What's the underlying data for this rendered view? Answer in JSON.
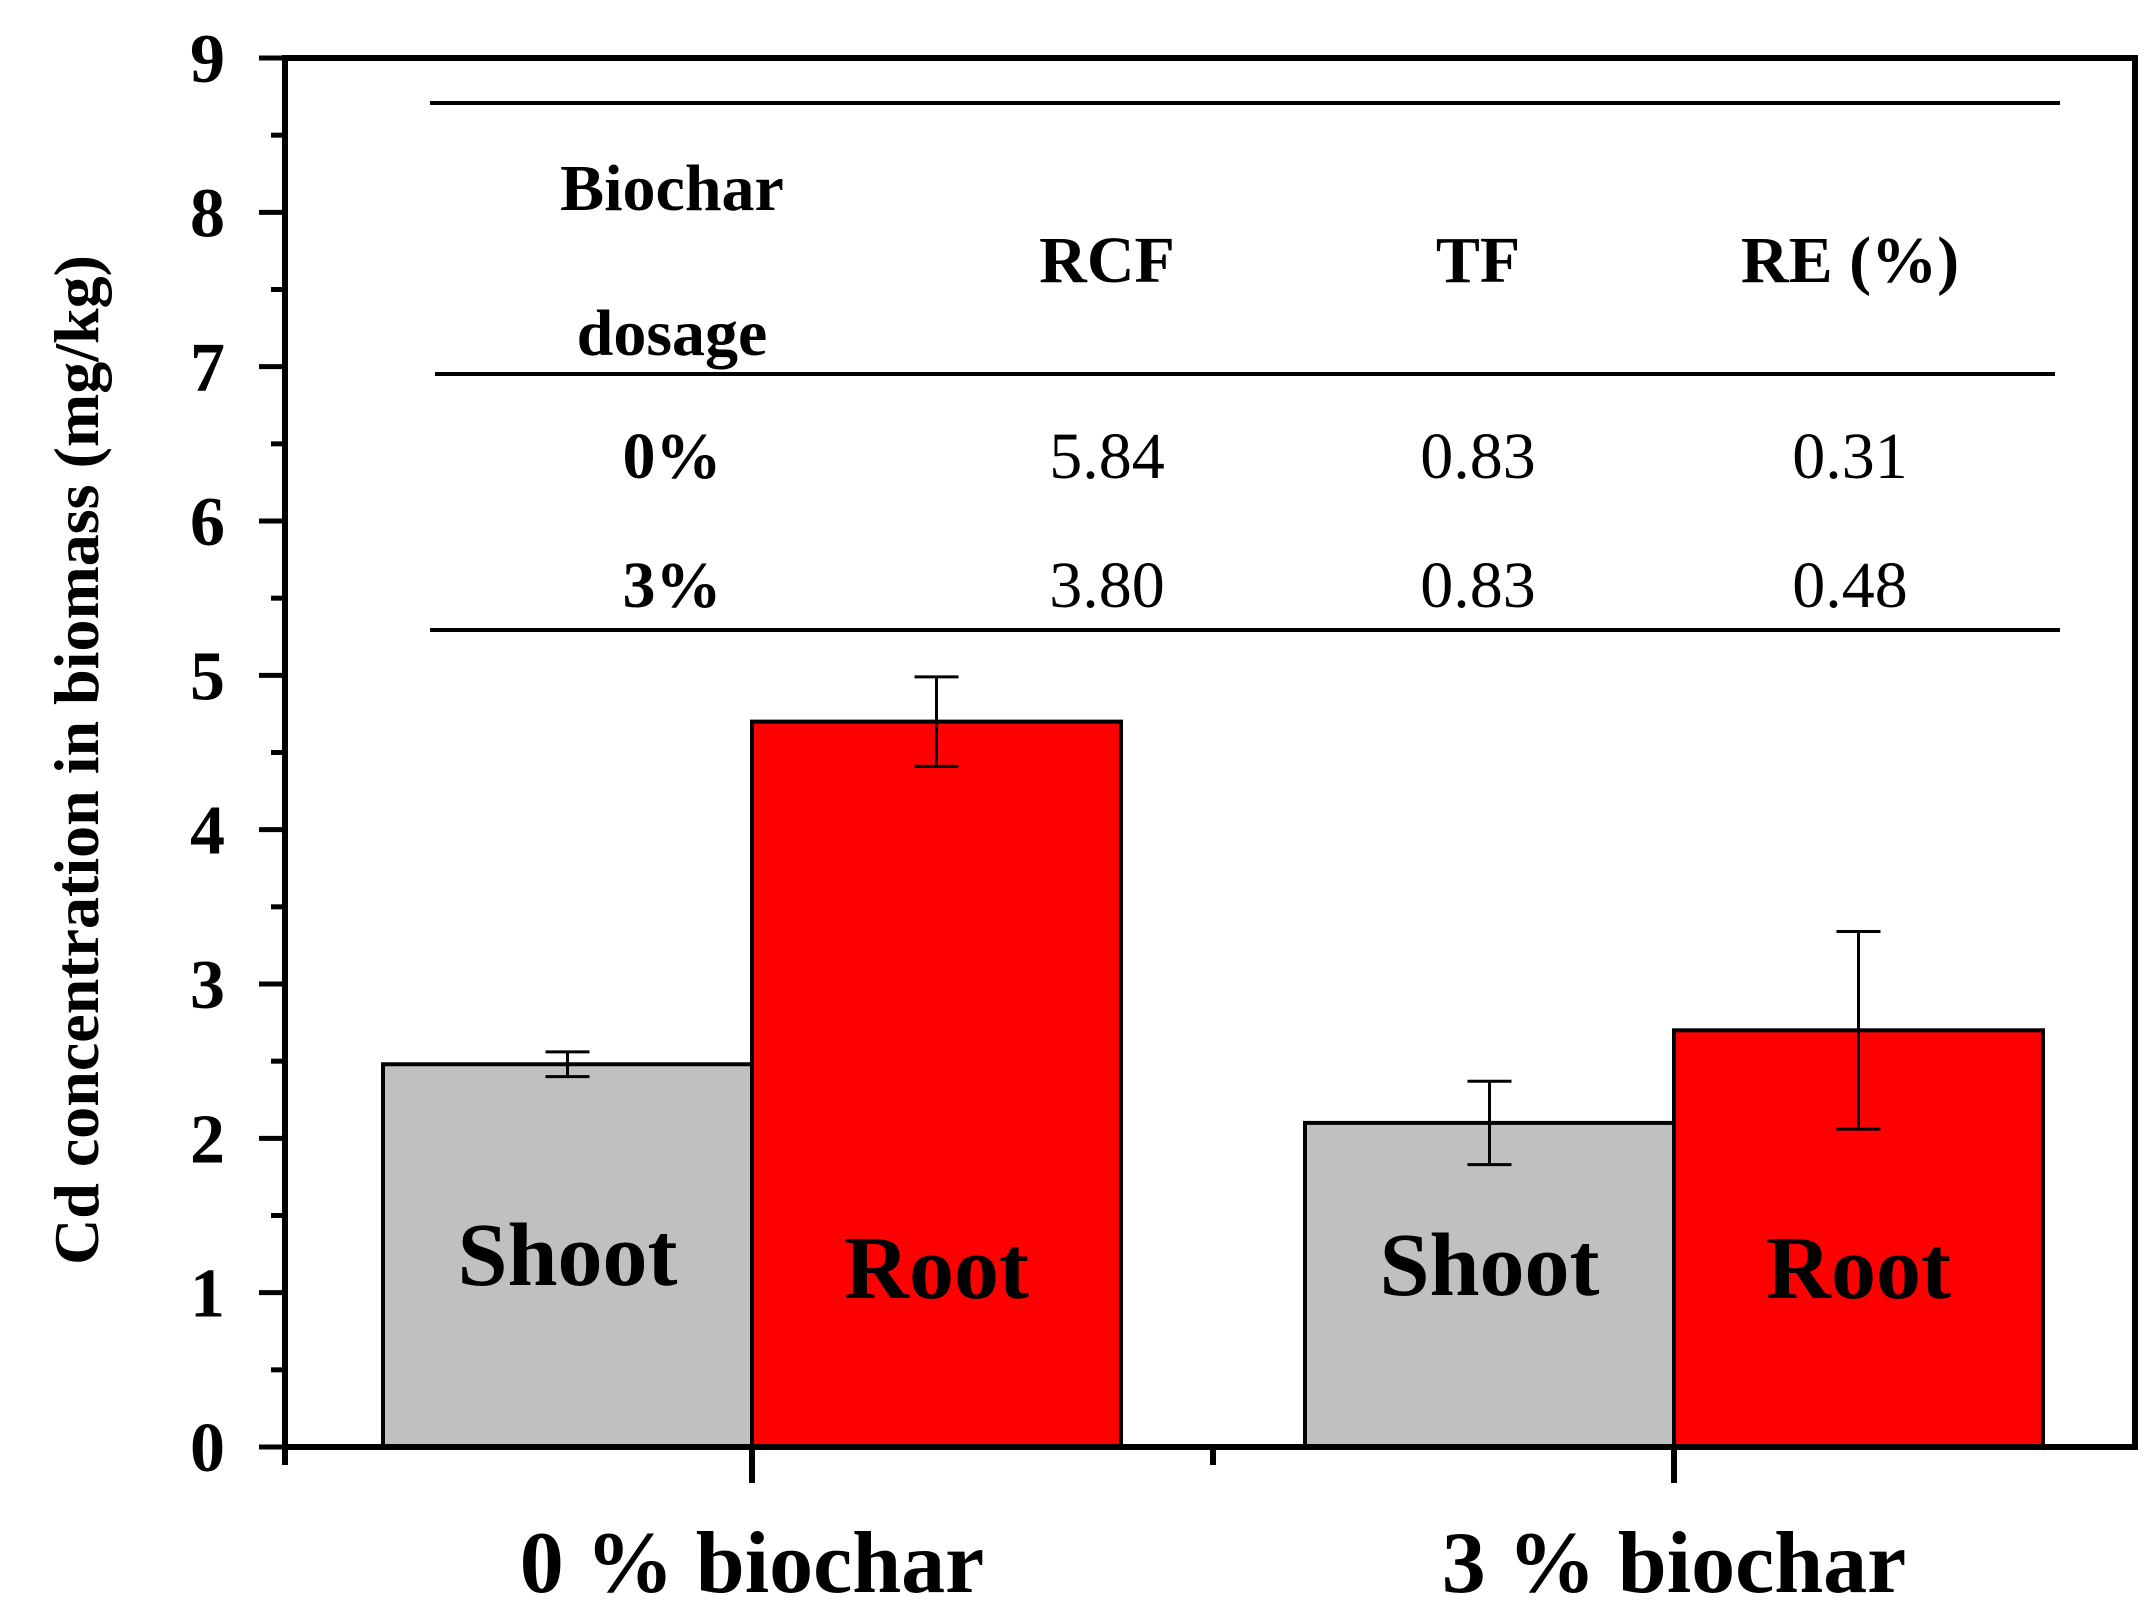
{
  "chart_data": {
    "type": "bar",
    "ylabel": "Cd concentration in biomass (mg/kg)",
    "xlabel": "",
    "ylim": [
      0,
      9
    ],
    "yticks": [
      "0",
      "1",
      "2",
      "3",
      "4",
      "5",
      "6",
      "7",
      "8",
      "9"
    ],
    "categories": [
      "0 % biochar",
      "3 % biochar"
    ],
    "series": [
      {
        "name": "Shoot",
        "color": "#c0c0c0",
        "values": [
          2.48,
          2.1
        ],
        "errors": [
          0.08,
          0.27
        ]
      },
      {
        "name": "Root",
        "color": "#ff0000",
        "values": [
          4.7,
          2.7
        ],
        "errors": [
          0.29,
          0.64
        ]
      }
    ],
    "bar_labels": [
      [
        "Shoot",
        "Root"
      ],
      [
        "Shoot",
        "Root"
      ]
    ],
    "inset_table": {
      "header_line1": "Biochar",
      "header_line2": "dosage",
      "columns": [
        "RCF",
        "TF",
        "RE (%)"
      ],
      "rows": [
        {
          "dosage": "0%",
          "values": [
            "5.84",
            "0.83",
            "0.31"
          ]
        },
        {
          "dosage": "3%",
          "values": [
            "3.80",
            "0.83",
            "0.48"
          ]
        }
      ]
    }
  }
}
